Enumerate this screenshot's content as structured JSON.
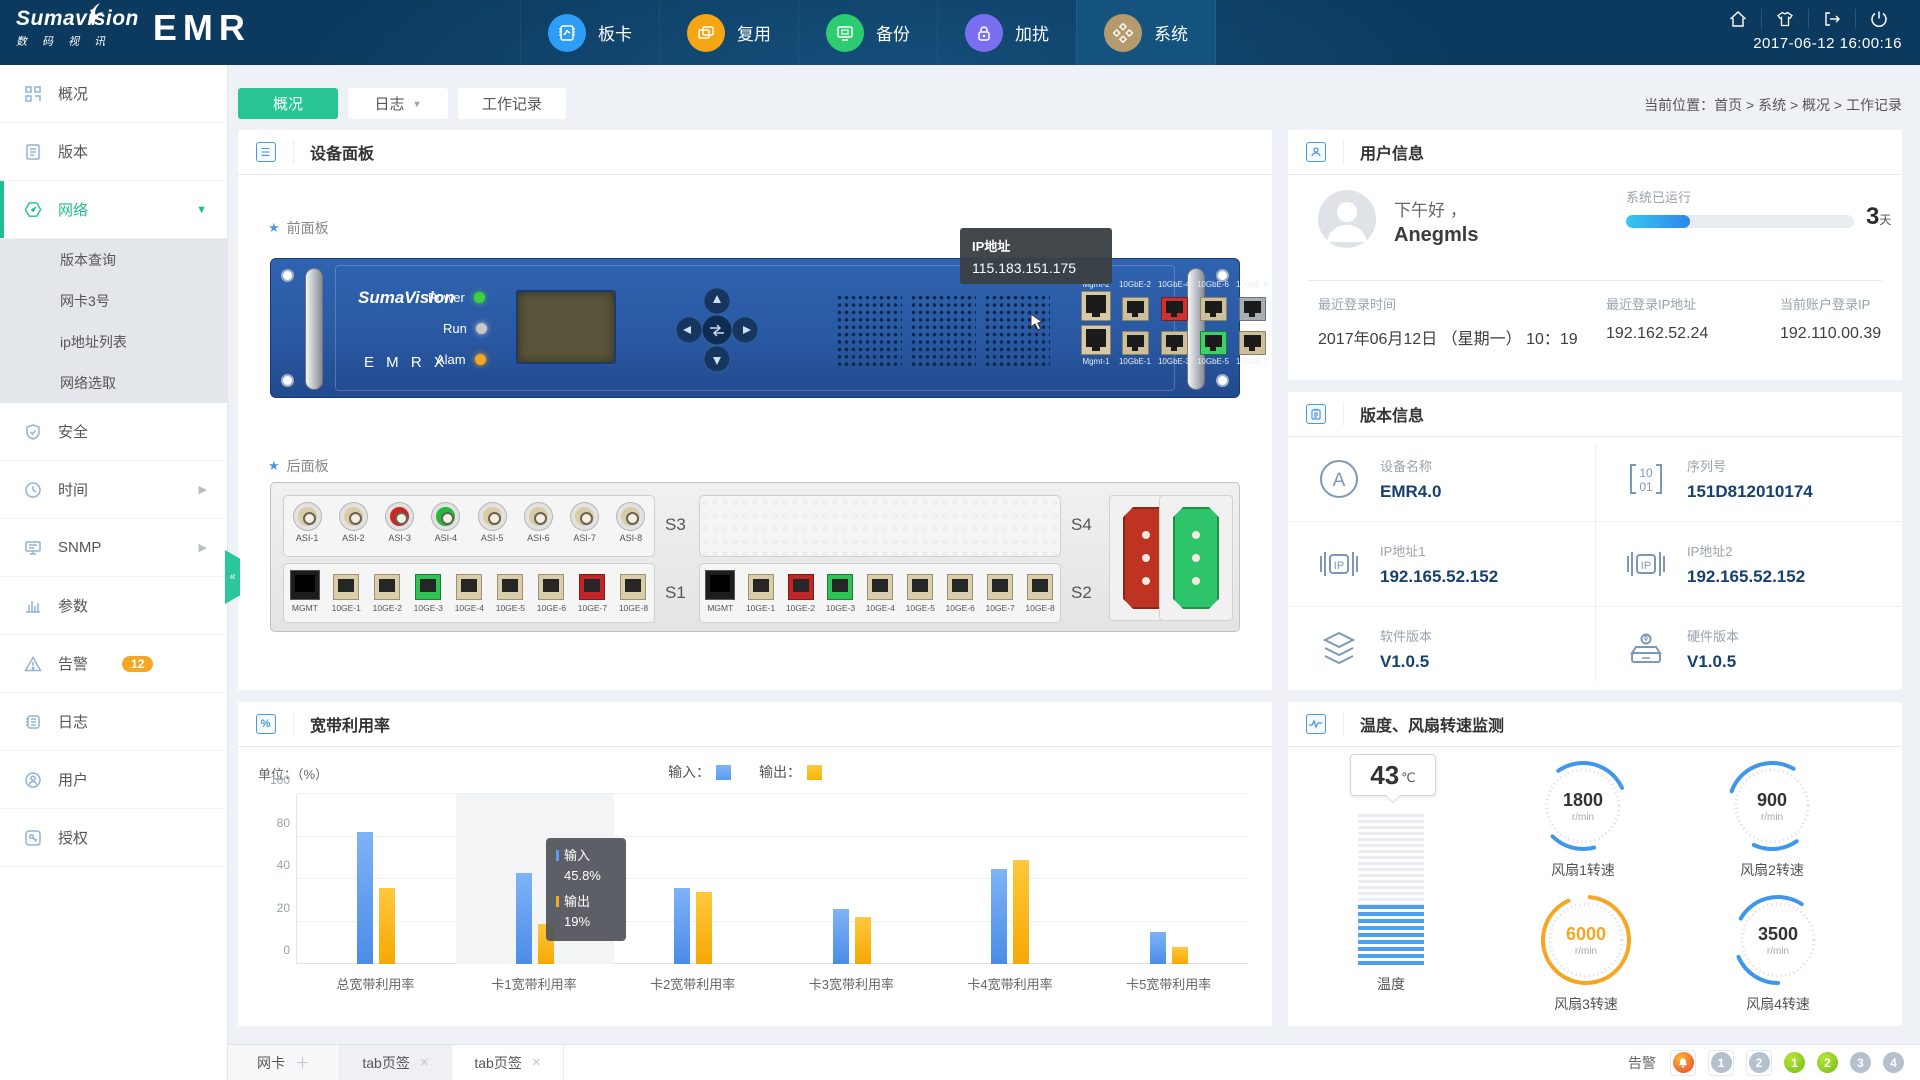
{
  "header": {
    "logo": {
      "name": "Sumavision",
      "cn": "数 码 视 讯",
      "product": "EMR"
    },
    "nav": [
      {
        "label": "板卡",
        "color": "#2e9df7",
        "active": false
      },
      {
        "label": "复用",
        "color": "#f5a614",
        "active": false
      },
      {
        "label": "备份",
        "color": "#2ecc71",
        "active": false
      },
      {
        "label": "加扰",
        "color": "#7a6ff0",
        "active": false
      },
      {
        "label": "系统",
        "color": "#b59a6e",
        "active": true
      }
    ],
    "datetime": "2017-06-12  16:00:16"
  },
  "sidebar": {
    "items": [
      {
        "label": "概况"
      },
      {
        "label": "版本"
      },
      {
        "label": "网络",
        "active": true,
        "expanded": true,
        "children": [
          {
            "label": "版本查询"
          },
          {
            "label": "网卡3号"
          },
          {
            "label": "ip地址列表"
          },
          {
            "label": "网络选取"
          }
        ]
      },
      {
        "label": "安全"
      },
      {
        "label": "时间",
        "arrow": "right"
      },
      {
        "label": "SNMP",
        "arrow": "right"
      },
      {
        "label": "参数"
      },
      {
        "label": "告警",
        "badge": "12"
      },
      {
        "label": "日志"
      },
      {
        "label": "用户"
      },
      {
        "label": "授权"
      }
    ]
  },
  "tabs": [
    {
      "label": "概况",
      "active": true
    },
    {
      "label": "日志",
      "dropdown": true
    },
    {
      "label": "工作记录"
    }
  ],
  "breadcrumb": "当前位置：首页 > 系统 > 概况 > 工作记录",
  "device_panel": {
    "title": "设备面板",
    "front_label": "前面板",
    "rear_label": "后面板",
    "brand": "SumaVision",
    "model": "E M R X",
    "leds": [
      {
        "label": "Power",
        "color": "#3ed13b"
      },
      {
        "label": "Run",
        "color": "#c7c7c7"
      },
      {
        "label": "Alam",
        "color": "#f5a623"
      }
    ],
    "tooltip": {
      "title": "IP地址",
      "value": "115.183.151.175"
    },
    "front_ports_top": [
      {
        "label": "Mgmt-2",
        "color": "mgmt"
      },
      {
        "label": "10GbE-2",
        "color": "std"
      },
      {
        "label": "10GbE-4",
        "color": "red"
      },
      {
        "label": "10GbE-6",
        "color": "std"
      },
      {
        "label": "10GbE-8",
        "color": "gray"
      }
    ],
    "front_ports_bottom": [
      {
        "label": "Mgmt-1",
        "color": "mgmt"
      },
      {
        "label": "10GbE-1",
        "color": "std"
      },
      {
        "label": "10GbE-3",
        "color": "std"
      },
      {
        "label": "10GbE-5",
        "color": "green"
      },
      {
        "label": "10GbE-7",
        "color": "std"
      }
    ],
    "rear": {
      "s3_label": "S3",
      "s1_label": "S1",
      "s4_label": "S4",
      "s2_label": "S2",
      "asi": [
        {
          "label": "ASI-1",
          "color": "std"
        },
        {
          "label": "ASI-2",
          "color": "std"
        },
        {
          "label": "ASI-3",
          "color": "red"
        },
        {
          "label": "ASI-4",
          "color": "green"
        },
        {
          "label": "ASI-5",
          "color": "std"
        },
        {
          "label": "ASI-6",
          "color": "std"
        },
        {
          "label": "ASI-7",
          "color": "std"
        },
        {
          "label": "ASI-8",
          "color": "std"
        }
      ],
      "s1_ports": [
        {
          "label": "MGMT",
          "color": "mgmt"
        },
        {
          "label": "10GE-1",
          "color": "std"
        },
        {
          "label": "10GE-2",
          "color": "std"
        },
        {
          "label": "10GE-3",
          "color": "green"
        },
        {
          "label": "10GE-4",
          "color": "std"
        },
        {
          "label": "10GE-5",
          "color": "std"
        },
        {
          "label": "10GE-6",
          "color": "std"
        },
        {
          "label": "10GE-7",
          "color": "red"
        },
        {
          "label": "10GE-8",
          "color": "std"
        }
      ],
      "s2_ports": [
        {
          "label": "MGMT",
          "color": "mgmt"
        },
        {
          "label": "10GE-1",
          "color": "std"
        },
        {
          "label": "10GE-2",
          "color": "red"
        },
        {
          "label": "10GE-3",
          "color": "green"
        },
        {
          "label": "10GE-4",
          "color": "std"
        },
        {
          "label": "10GE-5",
          "color": "std"
        },
        {
          "label": "10GE-6",
          "color": "std"
        },
        {
          "label": "10GE-7",
          "color": "std"
        },
        {
          "label": "10GE-8",
          "color": "std"
        }
      ]
    }
  },
  "user_info": {
    "title": "用户信息",
    "greeting": "下午好 ，",
    "username": "Anegmls",
    "uptime_label": "系统已运行",
    "uptime_value": "3",
    "uptime_unit": "天",
    "uptime_percent": 28,
    "fields": [
      {
        "label": "最近登录时间",
        "value": "2017年06月12日 （星期一）  10：19"
      },
      {
        "label": "最近登录IP地址",
        "value": "192.162.52.24"
      },
      {
        "label": "当前账户登录IP",
        "value": "192.110.00.39"
      }
    ]
  },
  "version_info": {
    "title": "版本信息",
    "glyphs": {
      "a": "A",
      "serial_top": "10",
      "serial_bottom": "01",
      "ip": "IP"
    },
    "items": [
      {
        "icon": "device-name-icon",
        "label": "设备名称",
        "value": "EMR4.0"
      },
      {
        "icon": "serial-icon",
        "label": "序列号",
        "value": "151D812010174"
      },
      {
        "icon": "ip-icon",
        "label": "IP地址1",
        "value": "192.165.52.152"
      },
      {
        "icon": "ip-icon",
        "label": "IP地址2",
        "value": "192.165.52.152"
      },
      {
        "icon": "software-version-icon",
        "label": "软件版本",
        "value": "V1.0.5"
      },
      {
        "icon": "hardware-version-icon",
        "label": "硬件版本",
        "value": "V1.0.5"
      }
    ]
  },
  "bandwidth": {
    "title": "宽带利用率",
    "icon_glyph": "%",
    "unit_label": "单位：（%）",
    "legend": [
      {
        "label": "输入：",
        "color": "#5b9cf0"
      },
      {
        "label": "输出：",
        "color": "#f8b500"
      }
    ],
    "tooltip": {
      "rows": [
        {
          "label": "输入",
          "value": "45.8%",
          "color": "#5b9cf0"
        },
        {
          "label": "输出",
          "value": "19%",
          "color": "#f5a623"
        }
      ]
    }
  },
  "chart_data": {
    "type": "bar",
    "title": "宽带利用率",
    "ylabel": "单位：（%）",
    "categories": [
      "总宽带利用率",
      "卡1宽带利用率",
      "卡2宽带利用率",
      "卡3宽带利用率",
      "卡4宽带利用率",
      "卡5宽带利用率"
    ],
    "series": [
      {
        "name": "输入",
        "color": "#5b9cf0",
        "values": [
          82,
          45.8,
          36,
          26,
          49,
          15
        ]
      },
      {
        "name": "输出",
        "color": "#f8b500",
        "values": [
          36,
          19,
          34,
          22,
          58,
          8
        ]
      }
    ],
    "yticks": [
      0,
      20,
      40,
      80,
      100
    ],
    "ylim": [
      0,
      100
    ],
    "grid": true,
    "legend_position": "top",
    "hover_index": 1
  },
  "monitor": {
    "title": "温度、风扇转速监测",
    "temperature": {
      "value": "43",
      "unit": "℃",
      "label": "温度",
      "fill_percent": 40
    },
    "fans": [
      {
        "value": "1800",
        "unit": "r/min",
        "label": "风扇1转速",
        "color": "#3f97ec",
        "value_color": "#333333",
        "full_ring": false
      },
      {
        "value": "900",
        "unit": "r/min",
        "label": "风扇2转速",
        "color": "#3f97ec",
        "value_color": "#333333",
        "full_ring": false
      },
      {
        "value": "6000",
        "unit": "r/min",
        "label": "风扇3转速",
        "color": "#f6a623",
        "value_color": "#f6a623",
        "full_ring": true
      },
      {
        "value": "3500",
        "unit": "r/min",
        "label": "风扇4转速",
        "color": "#3f97ec",
        "value_color": "#333333",
        "full_ring": false
      }
    ]
  },
  "footer": {
    "tabs": [
      {
        "label": "网卡",
        "icon": "plus"
      },
      {
        "label": "tab页签",
        "icon": "close"
      },
      {
        "label": "tab页签",
        "icon": "close",
        "active": true
      }
    ],
    "alarm_label": "告警",
    "badges": [
      {
        "type": "alarm",
        "boxed": true
      },
      {
        "type": "count",
        "label": "1",
        "color": "gray",
        "boxed": true
      },
      {
        "type": "count",
        "label": "2",
        "color": "gray",
        "boxed": true
      },
      {
        "type": "count",
        "label": "1",
        "color": "green",
        "boxed": false
      },
      {
        "type": "count",
        "label": "2",
        "color": "green",
        "boxed": false
      },
      {
        "type": "count",
        "label": "3",
        "color": "gray",
        "boxed": false
      },
      {
        "type": "count",
        "label": "4",
        "color": "gray",
        "boxed": false
      }
    ]
  }
}
